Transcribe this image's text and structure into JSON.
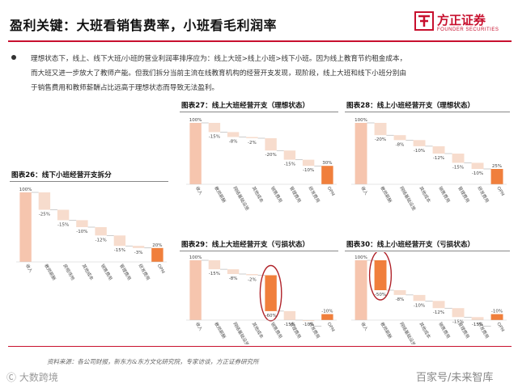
{
  "header": {
    "title": "盈利关键：大班看销售费率，小班看毛利润率"
  },
  "brand": {
    "name_cn": "方正证券",
    "name_en": "FOUNDER SECURITIES",
    "color": "#c8102e"
  },
  "intro": {
    "line1": "理想状态下，线上、线下大班/小班的营业利润率排序应为：线上大班>线上小班>线下小班。因为线上教育节约租金成本，",
    "line2": "而大班又进一步放大了教师产能。但我们拆分当前主流在线教育机构的经营开支发现，现阶段，线上大班和线下小班分别由",
    "line3": "于销售费用和教师薪酬占比远高于理想状态而导致无法盈利。"
  },
  "colors": {
    "positive": "#f6c5ae",
    "neutral": "#f7dccd",
    "final": "#f07f3c",
    "connector": "#999999",
    "highlight": "#b0232a"
  },
  "chart_data": [
    {
      "id": "fig26",
      "caption": "图表26：线下小班经营开支拆分",
      "type": "bar",
      "categories": [
        "收入",
        "教师薪酬",
        "房租场地",
        "其他成本",
        "销售费用",
        "管理费用",
        "研发费用",
        "OPM"
      ],
      "values": [
        100,
        -25,
        -15,
        -10,
        -12,
        -15,
        -3,
        20
      ],
      "labels": [
        "100%",
        "-25%",
        "-15%",
        "-10%",
        "-12%",
        "-15%",
        "-3%",
        "20%"
      ]
    },
    {
      "id": "fig27",
      "caption": "图表27：线上大班经营开支（理想状态）",
      "type": "bar",
      "categories": [
        "收入",
        "教师薪酬",
        "网络基础设施",
        "其他成本",
        "销售费用",
        "管理费用",
        "研发费用",
        "OPM"
      ],
      "values": [
        100,
        -15,
        -8,
        -2,
        -20,
        -15,
        -10,
        30
      ],
      "labels": [
        "100%",
        "-15%",
        "-8%",
        "-2%",
        "-20%",
        "-15%",
        "-10%",
        "30%"
      ]
    },
    {
      "id": "fig28",
      "caption": "图表28：线上小班经营开支（理想状态）",
      "type": "bar",
      "categories": [
        "收入",
        "教师薪酬",
        "网络基础设施",
        "其他成本",
        "销售费用",
        "管理费用",
        "研发费用",
        "OPM"
      ],
      "values": [
        100,
        -20,
        -8,
        -10,
        -12,
        -15,
        -10,
        25
      ],
      "labels": [
        "100%",
        "-20%",
        "-8%",
        "-10%",
        "-12%",
        "-15%",
        "-10%",
        "25%"
      ]
    },
    {
      "id": "fig29",
      "caption": "图表29：线上大班经营开支（亏损状态）",
      "type": "bar",
      "categories": [
        "收入",
        "教师薪酬",
        "网络基础设施",
        "其他成本",
        "销售费用",
        "管理费用",
        "研发费用",
        "OPM"
      ],
      "values": [
        100,
        -15,
        -8,
        -2,
        -60,
        -15,
        -10,
        -10
      ],
      "labels": [
        "100%",
        "-15%",
        "-8%",
        "-2%",
        "-60%",
        "-15%",
        "-10%",
        "-10%"
      ],
      "highlight_index": 4
    },
    {
      "id": "fig30",
      "caption": "图表30：线上小班经营开支（亏损状态）",
      "type": "bar",
      "categories": [
        "收入",
        "教师薪酬",
        "网络基础设施",
        "其他成本",
        "销售费用",
        "管理费用",
        "研发费用",
        "OPM"
      ],
      "values": [
        100,
        -50,
        -8,
        -10,
        -12,
        -15,
        -15,
        -10
      ],
      "labels": [
        "100%",
        "-50%",
        "-8%",
        "-10%",
        "-12%",
        "-15%",
        "-15%",
        "-10%"
      ],
      "highlight_index": 1
    }
  ],
  "footer": {
    "note": "资料来源：各公司财报，新东方&东方文化研究院，专家访谈，方正证券研究所"
  },
  "watermarks": {
    "left": "Ⓒ 大数跨境",
    "right": "百家号/未来智库"
  }
}
